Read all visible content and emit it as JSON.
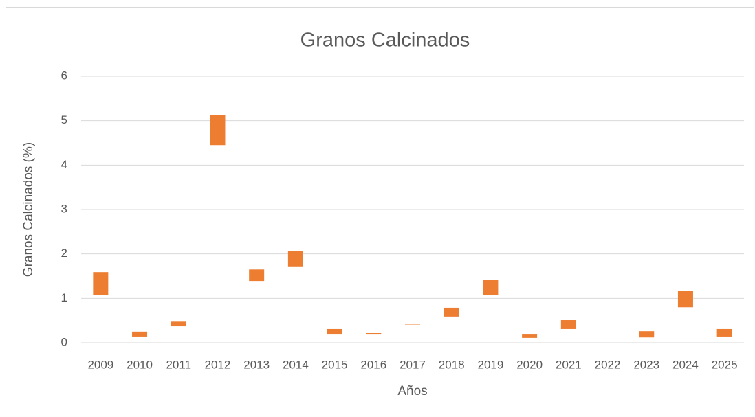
{
  "chart_data": {
    "type": "floating_bar",
    "title": "Granos Calcinados",
    "x_label": "Años",
    "y_label": "Granos Calcinados (%)",
    "categories": [
      "2009",
      "2010",
      "2011",
      "2012",
      "2013",
      "2014",
      "2015",
      "2016",
      "2017",
      "2018",
      "2019",
      "2020",
      "2021",
      "2022",
      "2023",
      "2024",
      "2025"
    ],
    "low": [
      1.07,
      0.14,
      0.37,
      4.45,
      1.39,
      1.72,
      0.2,
      0.2,
      0.41,
      0.59,
      1.07,
      0.11,
      0.31,
      null,
      0.12,
      0.8,
      0.14
    ],
    "high": [
      1.59,
      0.25,
      0.49,
      5.12,
      1.65,
      2.07,
      0.31,
      0.22,
      0.43,
      0.79,
      1.41,
      0.2,
      0.51,
      null,
      0.26,
      1.16,
      0.31
    ],
    "color": "#ed7d31",
    "ylim": [
      0,
      6
    ],
    "yticks": [
      0,
      1,
      2,
      3,
      4,
      5,
      6
    ],
    "grid": true
  }
}
